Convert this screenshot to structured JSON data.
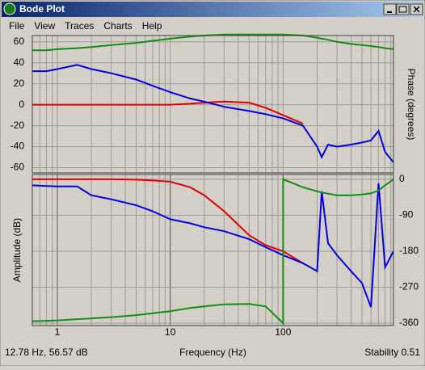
{
  "window": {
    "title": "Bode Plot",
    "menu": [
      "File",
      "View",
      "Traces",
      "Charts",
      "Help"
    ],
    "status": {
      "cursor": "12.78 Hz, 56.57 dB",
      "stability": "Stability 0.51"
    }
  },
  "chart_data": [
    {
      "type": "line",
      "y2label": "Phase (degrees)",
      "xscale": "log",
      "grid": true,
      "xlim": [
        0.6,
        950
      ],
      "ylim": [
        -65,
        66
      ],
      "yticks": [
        60,
        40,
        20,
        0,
        -20,
        -40,
        -60
      ],
      "x": [
        0.6,
        0.8,
        1,
        1.5,
        2,
        3,
        5,
        7,
        10,
        15,
        20,
        30,
        50,
        70,
        100,
        100,
        150,
        200,
        220,
        250,
        300,
        400,
        500,
        600,
        700,
        800,
        950
      ],
      "series": [
        {
          "color": "#e00000",
          "values": [
            0,
            0,
            0,
            0,
            0,
            0,
            0,
            0,
            0,
            1,
            2,
            3,
            2,
            -3,
            -10,
            -10,
            -18,
            null,
            null,
            null,
            null,
            null,
            null,
            null,
            null,
            null,
            null
          ]
        },
        {
          "color": "#0000e0",
          "values": [
            32,
            32,
            34,
            38,
            34,
            30,
            24,
            18,
            12,
            6,
            3,
            -2,
            -6,
            -9,
            -13,
            -13,
            -20,
            -40,
            -50,
            -38,
            -40,
            -38,
            -36,
            -34,
            -25,
            -45,
            -55
          ]
        },
        {
          "color": "#109010",
          "values": [
            52,
            52,
            53,
            54,
            55,
            57,
            59,
            61,
            63,
            65,
            66,
            67,
            67,
            67,
            67,
            67,
            66,
            64,
            63,
            62,
            60,
            58,
            57,
            56,
            55,
            54,
            53
          ]
        }
      ]
    },
    {
      "type": "line",
      "ylabel": "Amplitude (dB)",
      "xlabel": "Frequency (Hz)",
      "xscale": "log",
      "grid": true,
      "xlim": [
        0.6,
        950
      ],
      "xticks": [
        1,
        10,
        100
      ],
      "y2lim": [
        -366,
        12
      ],
      "y2ticks": [
        0,
        -90,
        -180,
        -270,
        -360
      ],
      "x": [
        0.6,
        0.8,
        1,
        1.5,
        2,
        3,
        5,
        7,
        10,
        15,
        20,
        30,
        50,
        70,
        100,
        100,
        150,
        200,
        220,
        250,
        300,
        400,
        500,
        600,
        700,
        800,
        950
      ],
      "series": [
        {
          "axis": "y2",
          "color": "#e00000",
          "values": [
            0,
            0,
            0,
            0,
            0,
            0,
            -1,
            -3,
            -6,
            -20,
            -40,
            -80,
            -140,
            -165,
            -180,
            -180,
            -210,
            null,
            null,
            null,
            null,
            null,
            null,
            null,
            null,
            null,
            null
          ]
        },
        {
          "axis": "y2",
          "color": "#0000e0",
          "values": [
            -15,
            -17,
            -18,
            -18,
            -40,
            -50,
            -65,
            -80,
            -100,
            -110,
            -120,
            -130,
            -150,
            -170,
            -190,
            -190,
            -210,
            -230,
            -30,
            -160,
            -190,
            -230,
            -260,
            -320,
            -10,
            -220,
            -180
          ]
        },
        {
          "axis": "y2",
          "color": "#109010",
          "values": [
            -355,
            -354,
            -353,
            -350,
            -348,
            -345,
            -340,
            -335,
            -330,
            -322,
            -318,
            -313,
            -312,
            -318,
            -360,
            0,
            -20,
            -30,
            -33,
            -36,
            -40,
            -40,
            -38,
            -35,
            -28,
            -15,
            0
          ]
        }
      ]
    }
  ]
}
